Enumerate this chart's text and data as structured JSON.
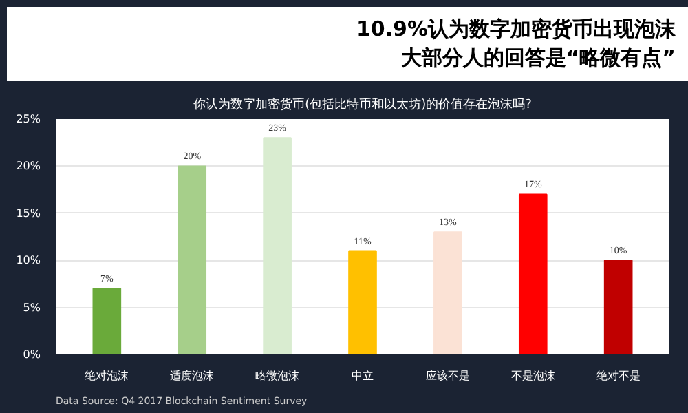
{
  "chart_data": {
    "type": "bar",
    "title": "10.9%认为数字加密货币出现泡沫",
    "subtitle": "大部分人的回答是“略微有点”",
    "annotations": [
      "你认为数字加密货币(包括比特币和以太坊)的价值存在泡沫吗?",
      "Data Source: Q4 2017 Blockchain Sentiment Survey"
    ],
    "categories": [
      "绝对泡沫",
      "适度泡沫",
      "略微泡沫",
      "中立",
      "应该不是",
      "不是泡沫",
      "绝对不是"
    ],
    "values": [
      7,
      20,
      23,
      11,
      13,
      17,
      10
    ],
    "colors": [
      "#6aaa3a",
      "#a6cf8a",
      "#d9ecd0",
      "#ffc000",
      "#fbe2d5",
      "#ff0000",
      "#c00000"
    ],
    "value_labels": [
      "7%",
      "20%",
      "23%",
      "11%",
      "13%",
      "17%",
      "10%"
    ],
    "ylim": [
      0,
      25
    ],
    "yticks": [
      {
        "value": 0,
        "label": "0%"
      },
      {
        "value": 5,
        "label": "5%"
      },
      {
        "value": 10,
        "label": "10%"
      },
      {
        "value": 15,
        "label": "15%"
      },
      {
        "value": 20,
        "label": "20%"
      },
      {
        "value": 25,
        "label": "25%"
      }
    ],
    "grid": "y"
  }
}
